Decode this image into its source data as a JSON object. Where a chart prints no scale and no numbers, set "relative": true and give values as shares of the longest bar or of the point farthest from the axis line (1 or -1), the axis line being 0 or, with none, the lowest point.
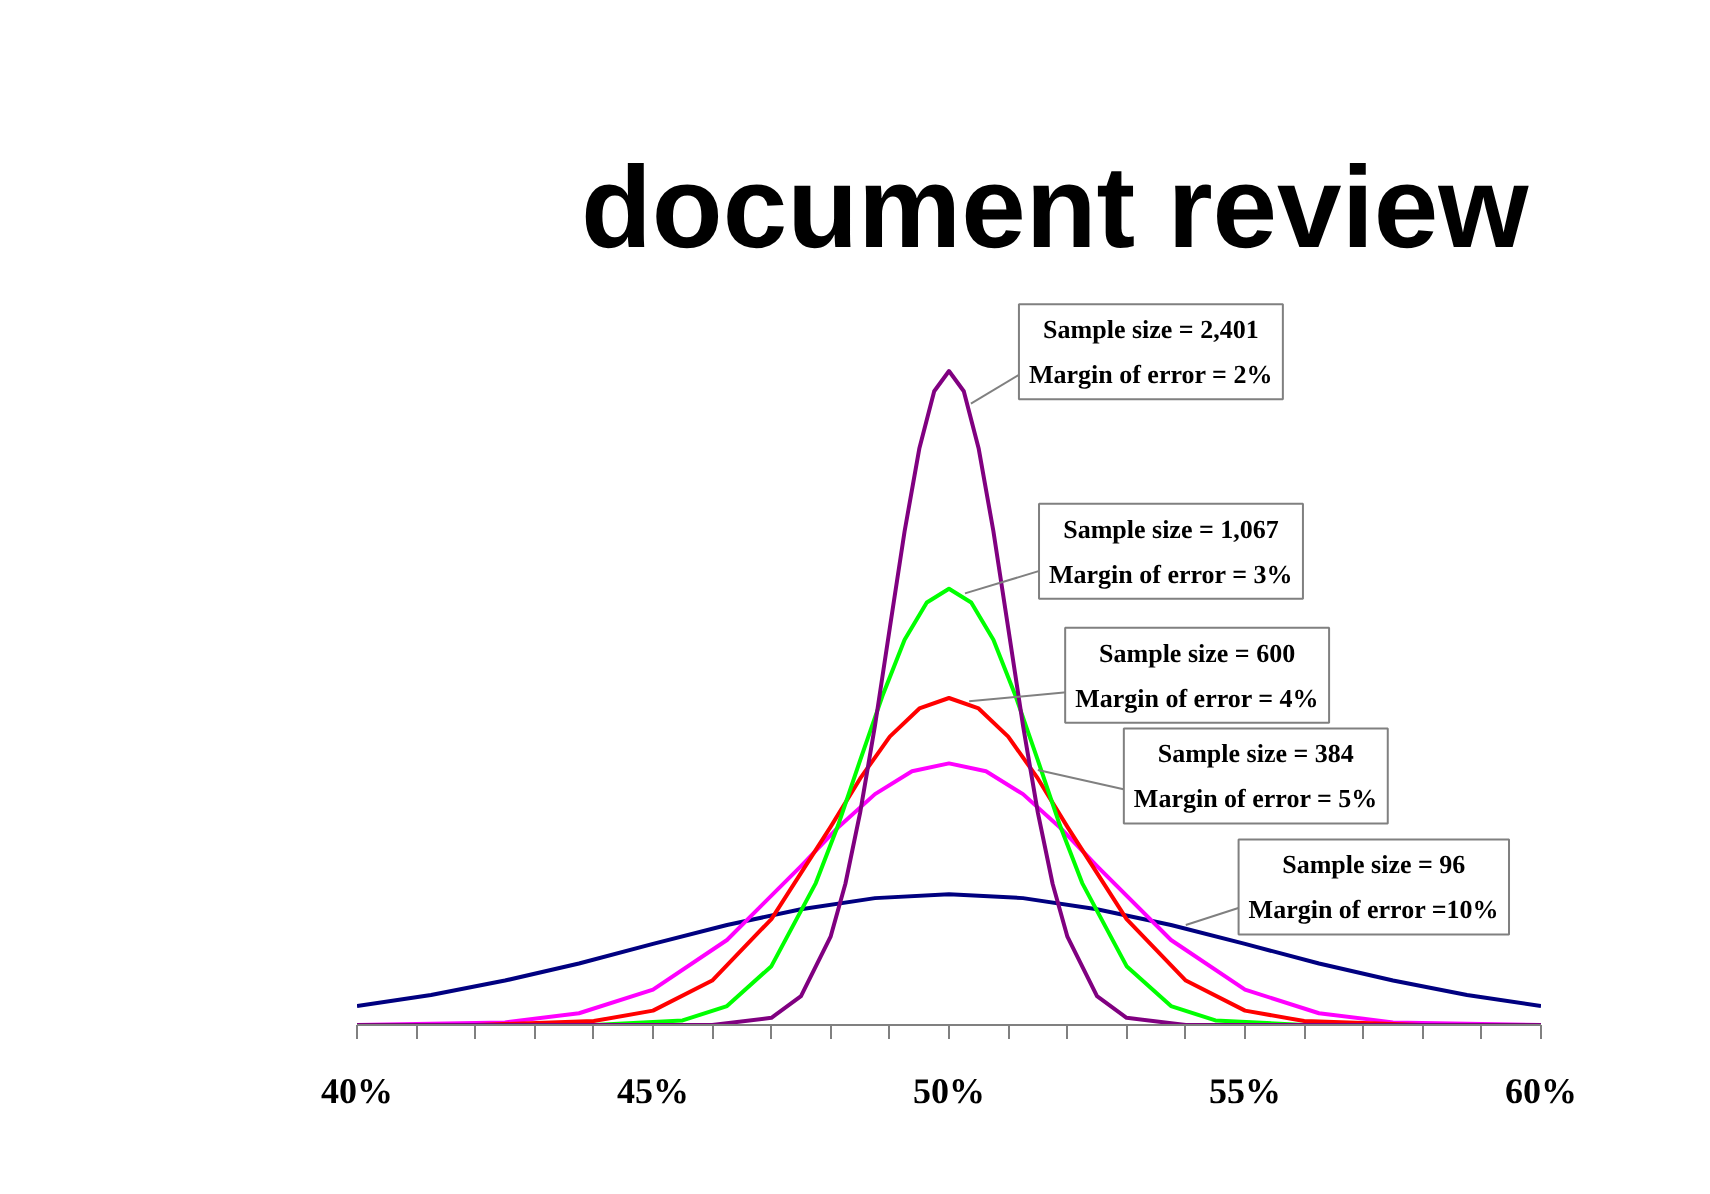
{
  "chart_data": {
    "type": "line",
    "title": "document review",
    "relative": true,
    "grid": false,
    "marker": "none",
    "line_style": "solid",
    "xlim": [
      40,
      60
    ],
    "xticks": [
      {
        "value": 40,
        "label": "40%"
      },
      {
        "value": 41,
        "label": null
      },
      {
        "value": 42,
        "label": null
      },
      {
        "value": 43,
        "label": null
      },
      {
        "value": 44,
        "label": null
      },
      {
        "value": 45,
        "label": "45%"
      },
      {
        "value": 46,
        "label": null
      },
      {
        "value": 47,
        "label": null
      },
      {
        "value": 48,
        "label": null
      },
      {
        "value": 49,
        "label": null
      },
      {
        "value": 50,
        "label": "50%"
      },
      {
        "value": 51,
        "label": null
      },
      {
        "value": 52,
        "label": null
      },
      {
        "value": 53,
        "label": null
      },
      {
        "value": 54,
        "label": null
      },
      {
        "value": 55,
        "label": "55%"
      },
      {
        "value": 56,
        "label": null
      },
      {
        "value": 57,
        "label": null
      },
      {
        "value": 58,
        "label": null
      },
      {
        "value": 59,
        "label": null
      },
      {
        "value": 60,
        "label": "60%"
      }
    ],
    "series": [
      {
        "color": "#000080",
        "x": [
          40,
          41.25,
          42.5,
          43.75,
          45,
          46.25,
          47.5,
          48.75,
          50,
          51.25,
          52.5,
          53.75,
          55,
          56.25,
          57.5,
          58.75,
          60
        ],
        "values": [
          0.029,
          0.046,
          0.068,
          0.094,
          0.124,
          0.153,
          0.177,
          0.194,
          0.2,
          0.194,
          0.177,
          0.153,
          0.124,
          0.094,
          0.068,
          0.046,
          0.029
        ]
      },
      {
        "color": "#ff00ff",
        "x": [
          40,
          42.5,
          43.75,
          45,
          46.25,
          47.5,
          48.125,
          48.75,
          49.375,
          50,
          50.625,
          51.25,
          51.875,
          52.5,
          53.75,
          55,
          56.25,
          57.5,
          60
        ],
        "values": [
          0,
          0.004,
          0.018,
          0.054,
          0.13,
          0.243,
          0.302,
          0.353,
          0.388,
          0.4,
          0.388,
          0.353,
          0.302,
          0.243,
          0.13,
          0.054,
          0.018,
          0.004,
          0
        ]
      },
      {
        "color": "#ff0000",
        "x": [
          40,
          42,
          44,
          45,
          46,
          47,
          48,
          48.5,
          49,
          49.5,
          50,
          50.5,
          51,
          51.5,
          52,
          53,
          54,
          55,
          56,
          58,
          60
        ],
        "values": [
          0,
          0,
          0.006,
          0.022,
          0.068,
          0.162,
          0.303,
          0.377,
          0.441,
          0.484,
          0.5,
          0.484,
          0.441,
          0.377,
          0.303,
          0.162,
          0.068,
          0.022,
          0.006,
          0,
          0
        ]
      },
      {
        "color": "#00ff00",
        "x": [
          40,
          44,
          45.5,
          46.25,
          47,
          47.75,
          48.125,
          48.5,
          48.875,
          49.25,
          49.625,
          50,
          50.375,
          50.75,
          51.125,
          51.5,
          51.875,
          52.25,
          53,
          53.75,
          54.5,
          56,
          60
        ],
        "values": [
          0,
          0,
          0.007,
          0.029,
          0.09,
          0.217,
          0.305,
          0.405,
          0.503,
          0.589,
          0.646,
          0.667,
          0.646,
          0.589,
          0.503,
          0.405,
          0.305,
          0.217,
          0.09,
          0.029,
          0.007,
          0,
          0
        ]
      },
      {
        "color": "#800080",
        "x": [
          40,
          46,
          47,
          47.5,
          48,
          48.25,
          48.5,
          48.75,
          49,
          49.25,
          49.5,
          49.75,
          50,
          50.25,
          50.5,
          50.75,
          51,
          51.25,
          51.5,
          51.75,
          52,
          52.5,
          53,
          54,
          60
        ],
        "values": [
          0,
          0,
          0.011,
          0.044,
          0.135,
          0.216,
          0.325,
          0.458,
          0.607,
          0.755,
          0.882,
          0.969,
          1,
          0.969,
          0.882,
          0.755,
          0.607,
          0.458,
          0.325,
          0.216,
          0.135,
          0.044,
          0.011,
          0,
          0
        ]
      }
    ],
    "annotations": [
      {
        "text": "Sample size = 2,401\nMargin of error = 2%",
        "x": 50.37,
        "y": 0.95
      },
      {
        "text": "Sample size = 1,067\nMargin of error = 3%",
        "x": 50.27,
        "y": 0.66
      },
      {
        "text": "Sample size = 600\nMargin of error = 4%",
        "x": 50.34,
        "y": 0.495
      },
      {
        "text": "Sample size = 384\nMargin of error = 5%",
        "x": 51.5,
        "y": 0.39
      },
      {
        "text": "Sample size = 96\nMargin of error =10%",
        "x": 54.0,
        "y": 0.153
      }
    ]
  }
}
